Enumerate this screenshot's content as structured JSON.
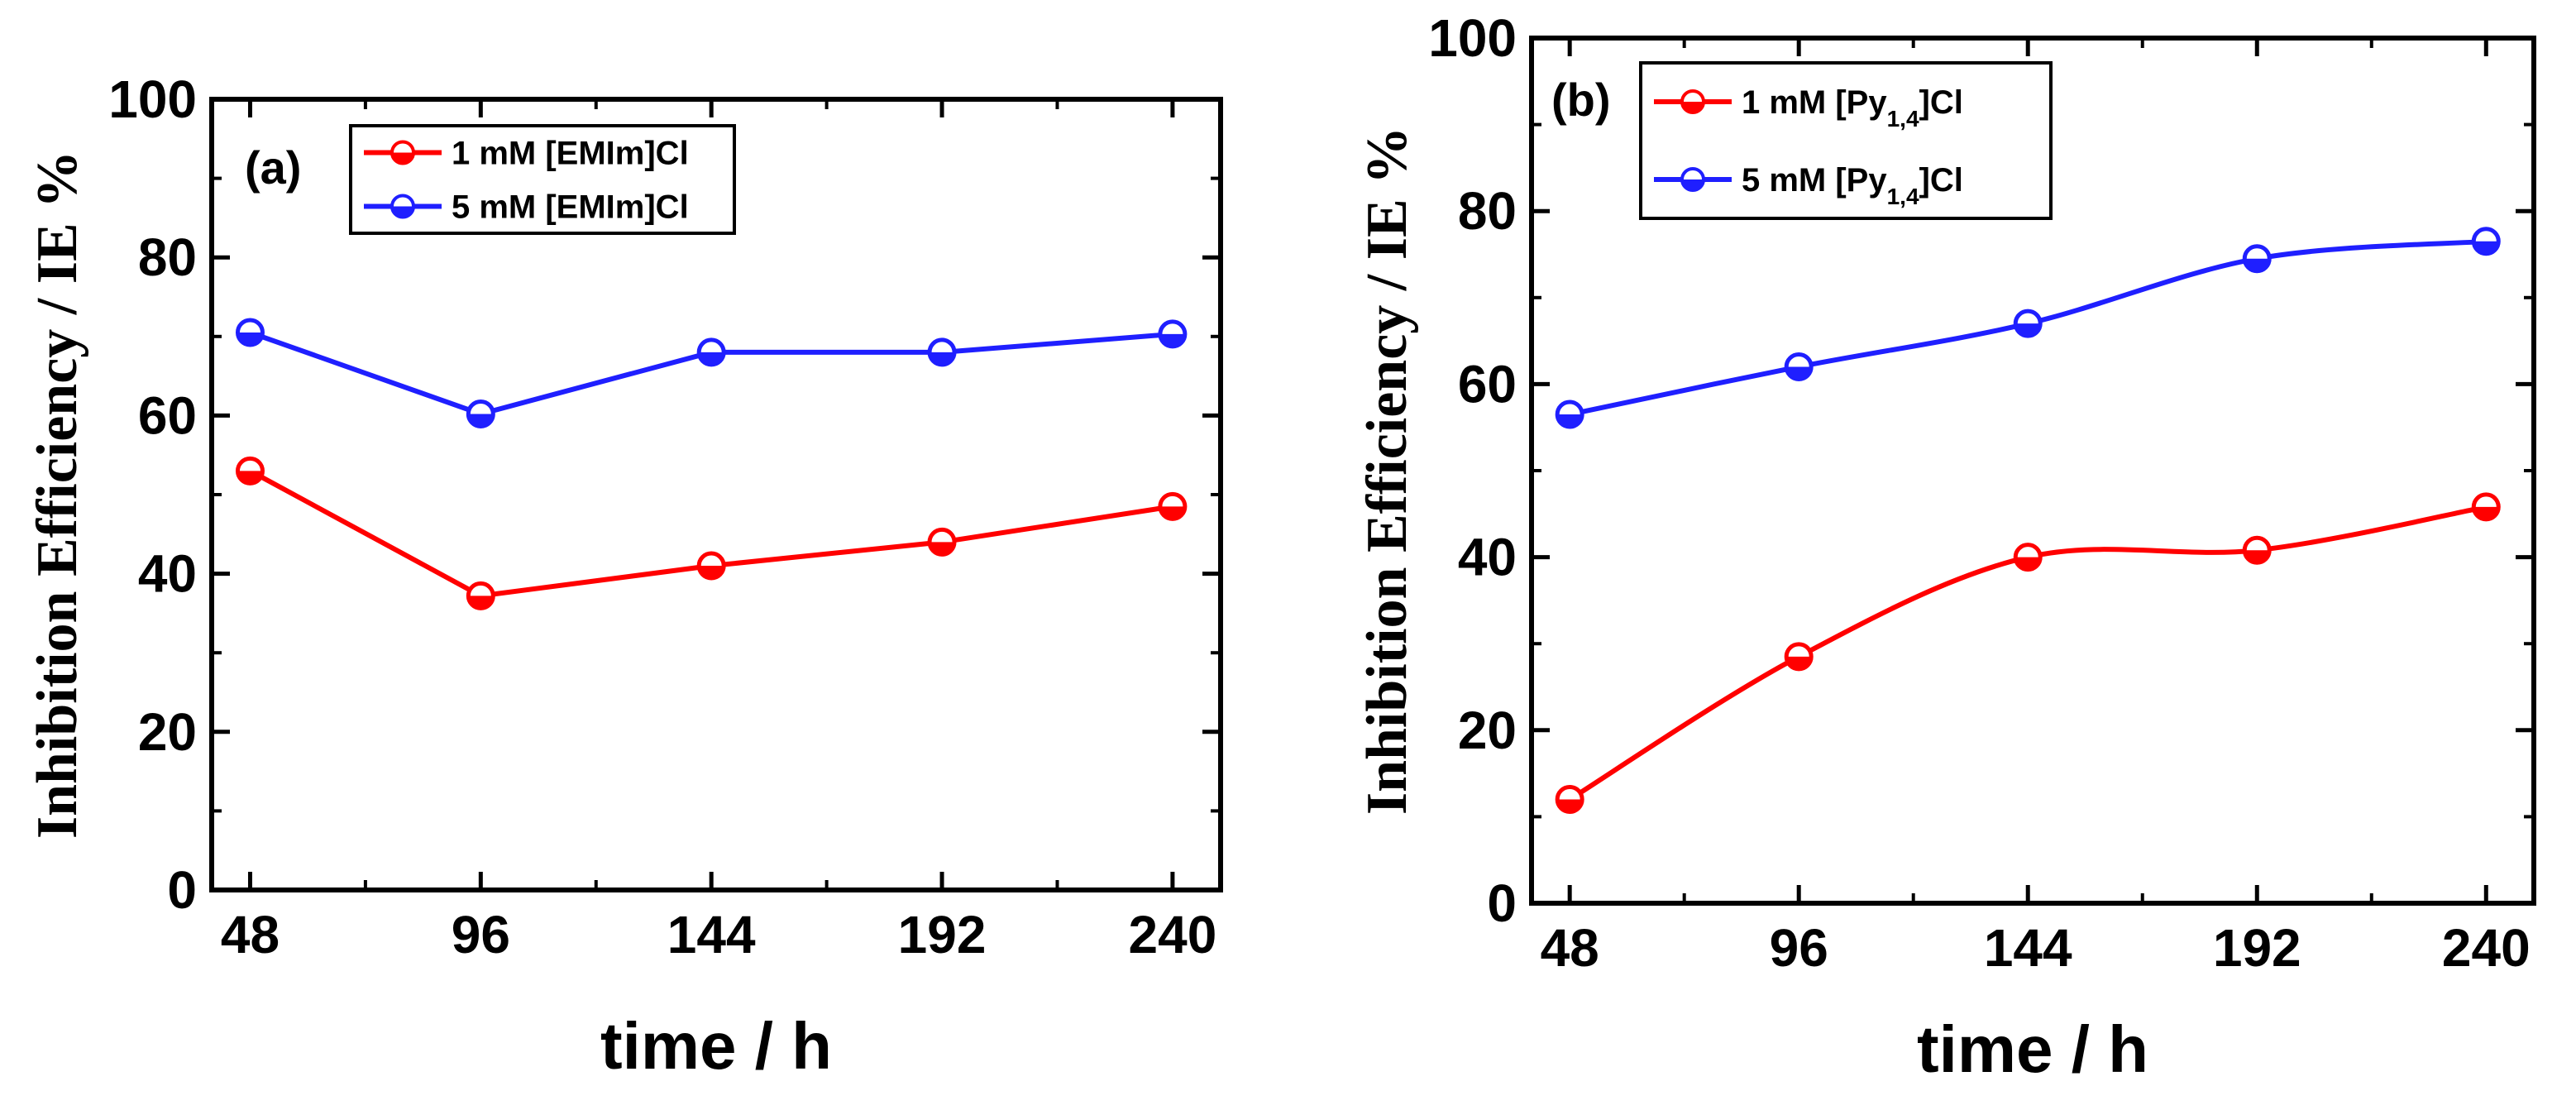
{
  "chart_data": [
    {
      "type": "line",
      "panel_label": "(a)",
      "smooth": false,
      "x": [
        48,
        96,
        144,
        192,
        240
      ],
      "xlim": [
        40,
        250
      ],
      "ylim": [
        0,
        100
      ],
      "xticks": [
        48,
        96,
        144,
        192,
        240
      ],
      "yticks": [
        0,
        20,
        40,
        60,
        80,
        100
      ],
      "xlabel": "time / h",
      "ylabel": "Inhibition Efficiency / IE %",
      "legend_position": "top-left",
      "series": [
        {
          "name": "1 mM [EMIm]Cl",
          "color": "#ff0000",
          "values": [
            53,
            37.2,
            41,
            44,
            48.5
          ]
        },
        {
          "name": "5 mM [EMIm]Cl",
          "color": "#1f1fff",
          "values": [
            70.5,
            60.2,
            68,
            68,
            70.3
          ]
        }
      ]
    },
    {
      "type": "line",
      "panel_label": "(b)",
      "smooth": true,
      "x": [
        48,
        96,
        144,
        192,
        240
      ],
      "xlim": [
        40,
        250
      ],
      "ylim": [
        0,
        100
      ],
      "xticks": [
        48,
        96,
        144,
        192,
        240
      ],
      "yticks": [
        0,
        20,
        40,
        60,
        80,
        100
      ],
      "xlabel": "time / h",
      "ylabel": "Inhibition Efficiency / IE %",
      "legend_position": "top-left",
      "series": [
        {
          "name": "1 mM [Py",
          "name_sub": "1,4",
          "name_suffix": "]Cl",
          "color": "#ff0000",
          "values": [
            12,
            28.5,
            40,
            40.8,
            45.8
          ]
        },
        {
          "name": "5 mM [Py",
          "name_sub": "1,4",
          "name_suffix": "]Cl",
          "color": "#1f1fff",
          "values": [
            56.5,
            62,
            67,
            74.5,
            76.5
          ]
        }
      ]
    }
  ]
}
